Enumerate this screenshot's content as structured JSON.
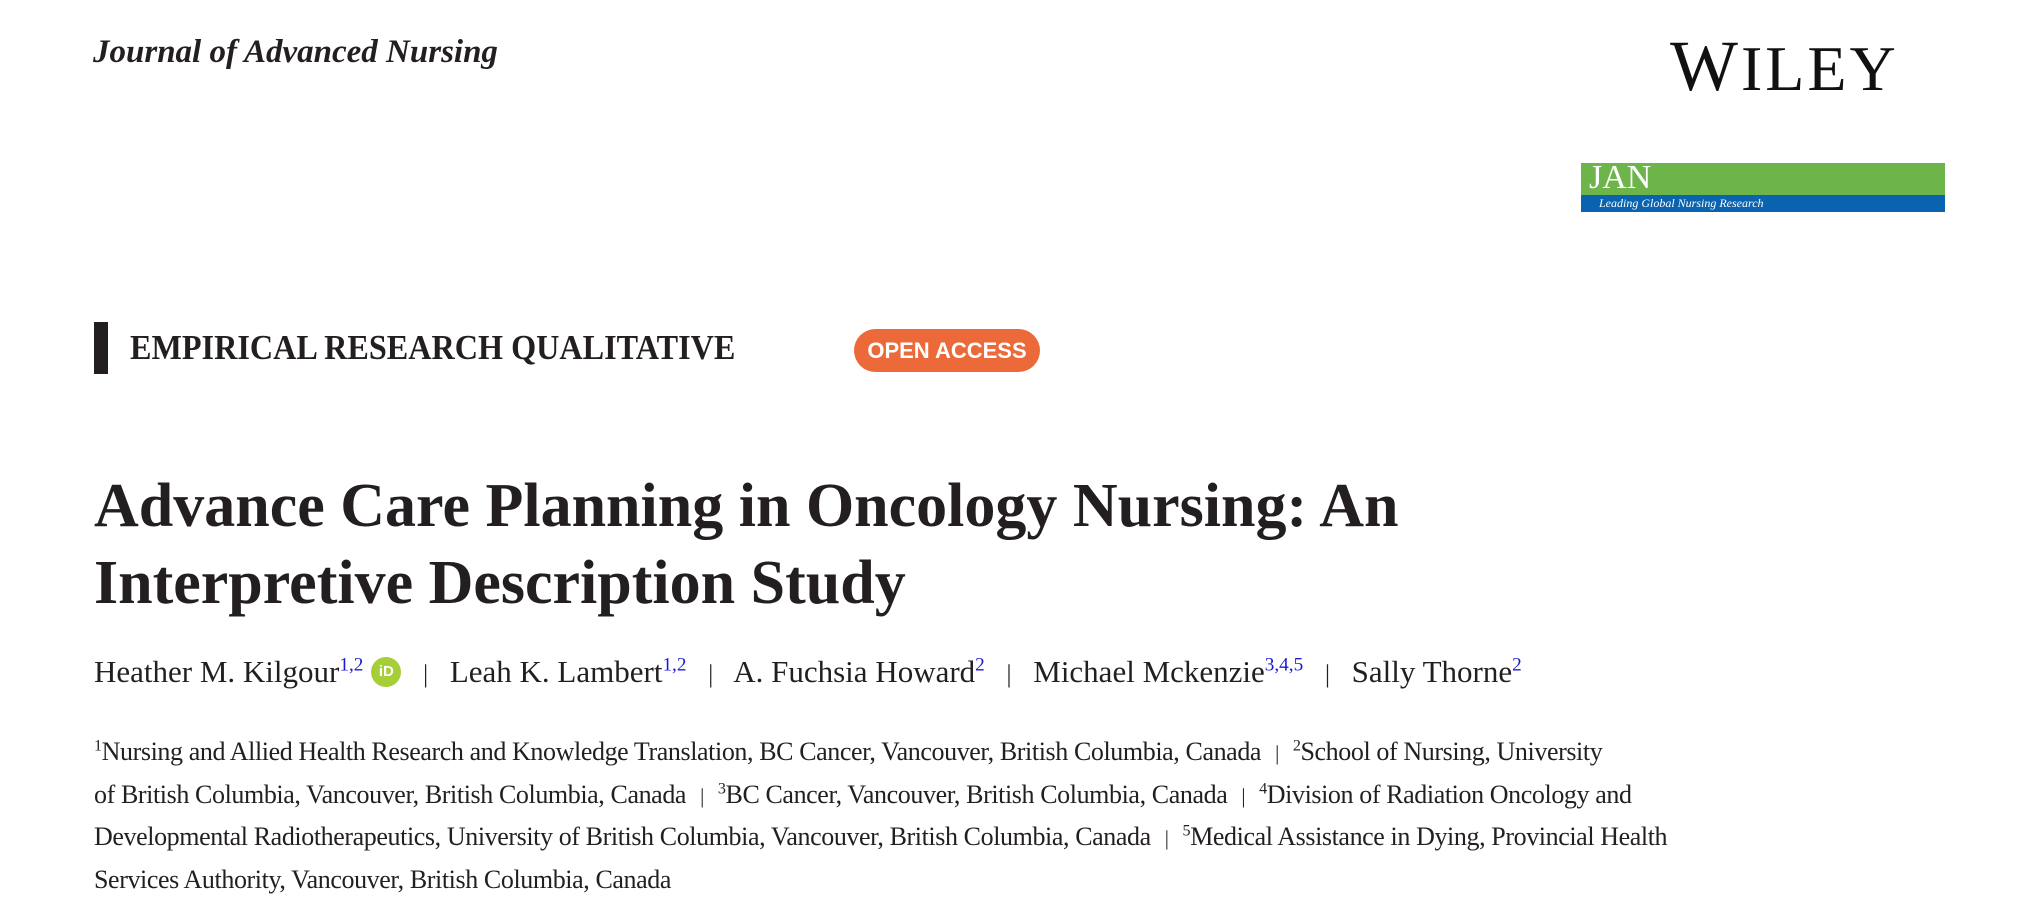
{
  "journal_title": "Journal of Advanced Nursing",
  "publisher_logo": "WILEY",
  "jan_logo": {
    "text": "JAN",
    "tagline": "Leading Global Nursing Research",
    "colors": {
      "green": "#6db54b",
      "blue": "#0a63ae"
    }
  },
  "section": {
    "label": "EMPIRICAL RESEARCH QUALITATIVE",
    "badge": "OPEN ACCESS",
    "badge_color": "#ec6a3a"
  },
  "title": {
    "line1": "Advance Care Planning in Oncology Nursing: An",
    "line2": "Interpretive Description Study"
  },
  "authors": [
    {
      "name": "Heather M. Kilgour",
      "affils": "1,2",
      "orcid": "iD"
    },
    {
      "name": "Leah K. Lambert",
      "affils": "1,2"
    },
    {
      "name": "A. Fuchsia Howard",
      "affils": "2"
    },
    {
      "name": "Michael Mckenzie",
      "affils": "3,4,5"
    },
    {
      "name": "Sally Thorne",
      "affils": "2"
    }
  ],
  "separator": "|",
  "affiliations": [
    {
      "num": "1",
      "text": "Nursing and Allied Health Research and Knowledge Translation, BC Cancer, Vancouver, British Columbia, Canada"
    },
    {
      "num": "2",
      "text_a": "School of Nursing, University",
      "text_b": "of British Columbia, Vancouver, British Columbia, Canada"
    },
    {
      "num": "3",
      "text": "BC Cancer, Vancouver, British Columbia, Canada"
    },
    {
      "num": "4",
      "text_a": "Division of Radiation Oncology and",
      "text_b": "Developmental Radiotherapeutics, University of British Columbia, Vancouver, British Columbia, Canada"
    },
    {
      "num": "5",
      "text_a": "Medical Assistance in Dying, Provincial Health",
      "text_b": "Services Authority, Vancouver, British Columbia, Canada"
    }
  ]
}
